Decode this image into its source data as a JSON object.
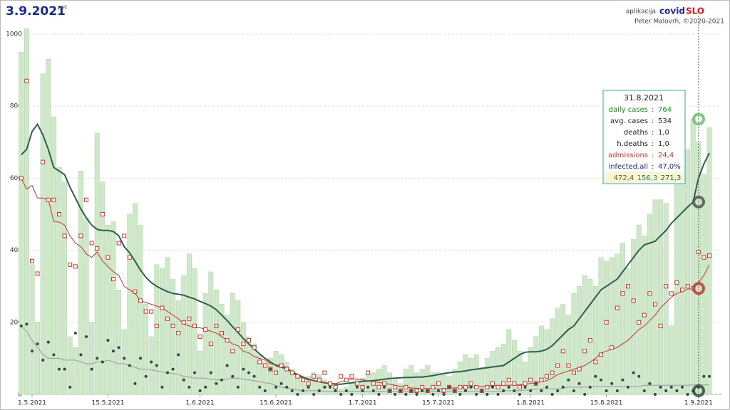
{
  "chart_data": {
    "type": "bar",
    "title": "3.9.2021",
    "subtitle": "pet",
    "header": {
      "app": "aplikacija",
      "brand1": "covid",
      "brand2": "SLO",
      "credit": "Peter Malovrh, ©2020-2021"
    },
    "categories": [
      null,
      null,
      "1.5.2021",
      null,
      null,
      null,
      null,
      null,
      null,
      null,
      null,
      null,
      null,
      null,
      null,
      null,
      "15.5.2021",
      null,
      null,
      null,
      null,
      null,
      null,
      null,
      null,
      null,
      null,
      null,
      null,
      null,
      null,
      null,
      null,
      "1.6.2021",
      null,
      null,
      null,
      null,
      null,
      null,
      null,
      null,
      null,
      null,
      null,
      null,
      null,
      "15.6.2021",
      null,
      null,
      null,
      null,
      null,
      null,
      null,
      null,
      null,
      null,
      null,
      null,
      null,
      null,
      null,
      "1.7.2021",
      null,
      null,
      null,
      null,
      null,
      null,
      null,
      null,
      null,
      null,
      null,
      null,
      null,
      "15.7.2021",
      null,
      null,
      null,
      null,
      null,
      null,
      null,
      null,
      null,
      null,
      null,
      null,
      null,
      null,
      null,
      null,
      "1.8.2021",
      null,
      null,
      null,
      null,
      null,
      null,
      null,
      null,
      null,
      null,
      null,
      null,
      null,
      "15.8.2021",
      null,
      null,
      null,
      null,
      null,
      null,
      null,
      null,
      null,
      null,
      null,
      null,
      null,
      null,
      null,
      null,
      "1.9.2021",
      null,
      null
    ],
    "ylim": [
      0,
      1075
    ],
    "yticks": [
      0,
      200,
      400,
      600,
      800,
      1000
    ],
    "grid": true,
    "series": [
      {
        "name": "daily cases",
        "type": "bar",
        "color": "#cfe8c9",
        "values": [
          950,
          1015,
          360,
          200,
          890,
          930,
          770,
          630,
          590,
          160,
          130,
          620,
          490,
          200,
          725,
          590,
          470,
          480,
          290,
          180,
          500,
          530,
          470,
          250,
          160,
          360,
          350,
          380,
          320,
          260,
          330,
          390,
          350,
          120,
          280,
          340,
          290,
          250,
          220,
          280,
          260,
          200,
          160,
          140,
          110,
          90,
          100,
          120,
          110,
          90,
          70,
          50,
          40,
          50,
          60,
          55,
          40,
          30,
          25,
          15,
          20,
          30,
          40,
          45,
          55,
          60,
          70,
          80,
          60,
          40,
          30,
          70,
          80,
          60,
          70,
          80,
          60,
          60,
          55,
          50,
          70,
          90,
          110,
          100,
          110,
          75,
          100,
          120,
          130,
          140,
          180,
          150,
          120,
          90,
          130,
          160,
          190,
          180,
          210,
          240,
          250,
          220,
          280,
          300,
          330,
          320,
          300,
          380,
          370,
          380,
          390,
          420,
          350,
          430,
          470,
          440,
          500,
          540,
          540,
          530,
          190,
          620,
          650,
          680,
          764,
          700,
          610,
          740
        ]
      },
      {
        "name": "avg. cases",
        "type": "line",
        "color": "#2f5d50",
        "width": 2,
        "values": [
          665,
          680,
          730,
          750,
          720,
          680,
          630,
          620,
          610,
          575,
          545,
          515,
          490,
          470,
          458,
          455,
          455,
          452,
          440,
          410,
          393,
          370,
          345,
          325,
          310,
          300,
          292,
          285,
          280,
          278,
          275,
          270,
          265,
          258,
          252,
          245,
          235,
          220,
          205,
          188,
          172,
          155,
          140,
          126,
          112,
          100,
          90,
          80,
          75,
          72,
          62,
          55,
          48,
          42,
          38,
          35,
          32,
          30,
          28,
          28,
          30,
          32,
          34,
          36,
          37,
          38,
          40,
          42,
          44,
          45,
          46,
          47,
          47,
          48,
          48,
          50,
          52,
          55,
          58,
          60,
          62,
          63,
          65,
          68,
          70,
          72,
          74,
          76,
          78,
          80,
          90,
          100,
          110,
          117,
          118,
          118,
          120,
          125,
          135,
          150,
          165,
          180,
          190,
          210,
          230,
          250,
          270,
          290,
          300,
          310,
          320,
          340,
          360,
          380,
          400,
          415,
          420,
          425,
          440,
          455,
          475,
          490,
          505,
          520,
          534,
          600,
          640,
          670
        ]
      },
      {
        "type": "line",
        "color": "#c0392b",
        "width": 1,
        "values": [
          600,
          570,
          580,
          545,
          545,
          540,
          480,
          478,
          470,
          440,
          420,
          410,
          390,
          380,
          395,
          370,
          355,
          340,
          330,
          300,
          290,
          280,
          260,
          255,
          250,
          245,
          240,
          230,
          220,
          210,
          195,
          190,
          185,
          185,
          180,
          175,
          170,
          160,
          150,
          140,
          135,
          120,
          115,
          105,
          100,
          95,
          85,
          82,
          80,
          75,
          60,
          50,
          45,
          40,
          38,
          35,
          33,
          30,
          30,
          35,
          40,
          42,
          43,
          40,
          38,
          35,
          33,
          30,
          28,
          25,
          22,
          20,
          18,
          17,
          16,
          16,
          15,
          15,
          16,
          17,
          18,
          18,
          20,
          20,
          20,
          22,
          22,
          24,
          25,
          25,
          25,
          26,
          26,
          28,
          30,
          32,
          35,
          38,
          45,
          55,
          60,
          65,
          70,
          75,
          80,
          90,
          100,
          115,
          120,
          125,
          130,
          140,
          150,
          165,
          180,
          190,
          205,
          220,
          240,
          255,
          270,
          280,
          285,
          292,
          294,
          310,
          330,
          360
        ]
      },
      {
        "name": "admissions",
        "type": "scatter",
        "marker": "square",
        "color": "#c0392b",
        "values": [
          600,
          870,
          370,
          335,
          645,
          540,
          540,
          500,
          440,
          360,
          355,
          440,
          540,
          420,
          405,
          500,
          380,
          320,
          420,
          440,
          380,
          285,
          260,
          230,
          230,
          190,
          240,
          210,
          190,
          170,
          200,
          210,
          190,
          160,
          180,
          140,
          190,
          170,
          150,
          120,
          180,
          140,
          150,
          130,
          90,
          80,
          70,
          60,
          80,
          70,
          60,
          50,
          40,
          30,
          50,
          40,
          60,
          30,
          20,
          50,
          40,
          50,
          30,
          20,
          60,
          30,
          20,
          30,
          10,
          20,
          10,
          20,
          10,
          10,
          20,
          10,
          20,
          30,
          10,
          20,
          10,
          20,
          20,
          30,
          20,
          10,
          20,
          30,
          20,
          30,
          40,
          30,
          20,
          30,
          40,
          30,
          40,
          50,
          60,
          80,
          120,
          80,
          60,
          70,
          120,
          150,
          90,
          110,
          200,
          130,
          240,
          280,
          300,
          260,
          200,
          220,
          280,
          250,
          190,
          300,
          280,
          310,
          290,
          300,
          294,
          395,
          380,
          385
        ]
      },
      {
        "name": "h.deaths",
        "type": "line",
        "color": "#9a9a9a",
        "width": 1,
        "values": [
          190,
          175,
          150,
          130,
          110,
          100,
          100,
          100,
          95,
          95,
          95,
          90,
          85,
          85,
          90,
          90,
          95,
          90,
          85,
          85,
          80,
          75,
          70,
          70,
          68,
          65,
          62,
          60,
          58,
          55,
          50,
          48,
          45,
          45,
          45,
          42,
          40,
          40,
          42,
          45,
          45,
          42,
          40,
          38,
          35,
          32,
          30,
          25,
          20,
          18,
          15,
          12,
          10,
          10,
          10,
          10,
          8,
          8,
          8,
          8,
          8,
          8,
          8,
          8,
          8,
          8,
          8,
          8,
          8,
          8,
          8,
          8,
          8,
          8,
          8,
          8,
          8,
          8,
          8,
          8,
          8,
          8,
          8,
          8,
          8,
          8,
          8,
          8,
          8,
          10,
          10,
          10,
          10,
          12,
          12,
          15,
          15,
          15,
          15,
          15,
          18,
          20,
          20,
          20,
          20,
          20,
          22,
          22,
          22,
          22,
          22,
          22,
          22,
          22,
          22,
          25,
          25,
          25,
          25,
          25,
          25,
          25,
          25,
          25,
          26,
          26,
          26,
          26
        ]
      },
      {
        "name": "deaths",
        "type": "scatter",
        "marker": "circle",
        "color": "#2d4a44",
        "values": [
          190,
          195,
          120,
          140,
          95,
          145,
          110,
          70,
          70,
          20,
          170,
          110,
          160,
          70,
          100,
          90,
          150,
          120,
          130,
          100,
          80,
          30,
          100,
          50,
          90,
          80,
          20,
          60,
          70,
          110,
          40,
          20,
          60,
          10,
          20,
          60,
          30,
          40,
          80,
          50,
          20,
          70,
          60,
          50,
          20,
          10,
          70,
          20,
          30,
          20,
          10,
          0,
          10,
          20,
          0,
          10,
          20,
          20,
          10,
          0,
          10,
          0,
          20,
          10,
          20,
          10,
          0,
          20,
          10,
          0,
          10,
          0,
          10,
          0,
          10,
          10,
          0,
          10,
          0,
          20,
          10,
          0,
          10,
          20,
          0,
          10,
          0,
          20,
          0,
          10,
          20,
          10,
          0,
          20,
          10,
          30,
          10,
          20,
          0,
          10,
          20,
          40,
          10,
          30,
          0,
          20,
          50,
          40,
          10,
          30,
          10,
          40,
          20,
          60,
          50,
          10,
          30,
          0,
          20,
          10,
          20,
          10,
          20,
          0,
          10,
          20,
          50,
          50
        ]
      }
    ],
    "tooltip": {
      "date": "31.8.2021",
      "separator": ":",
      "rows": [
        {
          "series": 0,
          "value": "764"
        },
        {
          "series": 1,
          "value": "534"
        },
        {
          "series": 5,
          "value": "1,0"
        },
        {
          "series": 4,
          "value": "1,0"
        },
        {
          "series": 3,
          "value": "24,4"
        }
      ],
      "extra": {
        "label": "infected.all",
        "value": "47,0%"
      },
      "footer": [
        "472,4",
        "156,3",
        "271,3"
      ]
    }
  }
}
